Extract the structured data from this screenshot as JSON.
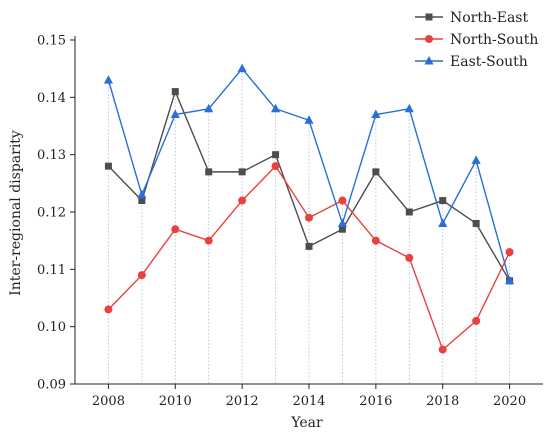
{
  "chart_data": {
    "type": "line",
    "title": "",
    "xlabel": "Year",
    "ylabel": "Inter-regional disparity",
    "x": [
      2008,
      2009,
      2010,
      2011,
      2012,
      2013,
      2014,
      2015,
      2016,
      2017,
      2018,
      2019,
      2020
    ],
    "xticks": [
      "2008",
      "2010",
      "2012",
      "2014",
      "2016",
      "2018",
      "2020"
    ],
    "yticks": [
      "0.09",
      "0.10",
      "0.11",
      "0.12",
      "0.13",
      "0.14",
      "0.15"
    ],
    "xlim": [
      2007,
      2021
    ],
    "ylim": [
      0.09,
      0.15
    ],
    "vertical_guides": true,
    "legend_position": "top-right",
    "series": [
      {
        "name": "North-East",
        "color": "#4d4d4d",
        "marker": "square",
        "values": [
          0.128,
          0.122,
          0.141,
          0.127,
          0.127,
          0.13,
          0.114,
          0.117,
          0.127,
          0.12,
          0.122,
          0.118,
          0.108
        ]
      },
      {
        "name": "North-South",
        "color": "#e8413f",
        "marker": "circle",
        "values": [
          0.103,
          0.109,
          0.117,
          0.115,
          0.122,
          0.128,
          0.119,
          0.122,
          0.115,
          0.112,
          0.096,
          0.101,
          0.113
        ]
      },
      {
        "name": "East-South",
        "color": "#2a6fd6",
        "marker": "triangle",
        "values": [
          0.143,
          0.123,
          0.137,
          0.138,
          0.145,
          0.138,
          0.136,
          0.118,
          0.137,
          0.138,
          0.118,
          0.129,
          0.108
        ]
      }
    ]
  }
}
